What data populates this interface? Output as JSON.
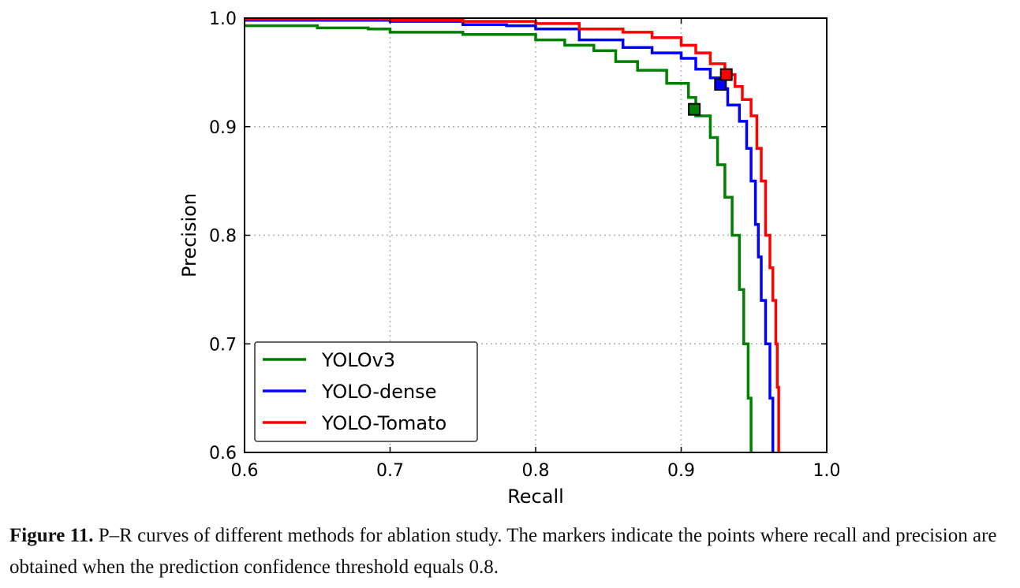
{
  "caption": {
    "label": "Figure 11.",
    "text": " P–R curves of different methods for ablation study. The markers indicate the points where recall and precision are obtained when the prediction confidence threshold equals 0.8."
  },
  "chart_data": {
    "type": "line",
    "title": "",
    "xlabel": "Recall",
    "ylabel": "Precision",
    "xlim": [
      0.6,
      1.0
    ],
    "ylim": [
      0.6,
      1.0
    ],
    "xticks": [
      "0.6",
      "0.7",
      "0.8",
      "0.9",
      "1.0"
    ],
    "yticks": [
      "0.6",
      "0.7",
      "0.8",
      "0.9",
      "1.0"
    ],
    "grid": true,
    "legend_position": "lower-left",
    "series": [
      {
        "name": "YOLOv3",
        "color": "#008000",
        "points": [
          [
            0.6,
            0.993
          ],
          [
            0.65,
            0.991
          ],
          [
            0.685,
            0.99
          ],
          [
            0.7,
            0.987
          ],
          [
            0.75,
            0.985
          ],
          [
            0.8,
            0.98
          ],
          [
            0.82,
            0.975
          ],
          [
            0.84,
            0.97
          ],
          [
            0.855,
            0.96
          ],
          [
            0.87,
            0.952
          ],
          [
            0.89,
            0.94
          ],
          [
            0.905,
            0.927
          ],
          [
            0.91,
            0.91
          ],
          [
            0.92,
            0.89
          ],
          [
            0.925,
            0.865
          ],
          [
            0.93,
            0.835
          ],
          [
            0.935,
            0.8
          ],
          [
            0.94,
            0.75
          ],
          [
            0.943,
            0.7
          ],
          [
            0.946,
            0.65
          ],
          [
            0.948,
            0.6
          ]
        ],
        "marker": [
          0.909,
          0.916
        ]
      },
      {
        "name": "YOLO-dense",
        "color": "#0000ff",
        "points": [
          [
            0.6,
            0.998
          ],
          [
            0.7,
            0.997
          ],
          [
            0.75,
            0.994
          ],
          [
            0.78,
            0.993
          ],
          [
            0.8,
            0.99
          ],
          [
            0.83,
            0.98
          ],
          [
            0.86,
            0.973
          ],
          [
            0.88,
            0.968
          ],
          [
            0.9,
            0.963
          ],
          [
            0.91,
            0.953
          ],
          [
            0.92,
            0.945
          ],
          [
            0.927,
            0.935
          ],
          [
            0.932,
            0.92
          ],
          [
            0.94,
            0.905
          ],
          [
            0.945,
            0.88
          ],
          [
            0.948,
            0.85
          ],
          [
            0.951,
            0.81
          ],
          [
            0.953,
            0.78
          ],
          [
            0.955,
            0.74
          ],
          [
            0.958,
            0.7
          ],
          [
            0.961,
            0.65
          ],
          [
            0.963,
            0.6
          ]
        ],
        "marker": [
          0.927,
          0.939
        ]
      },
      {
        "name": "YOLO-Tomato",
        "color": "#ff0000",
        "points": [
          [
            0.6,
            0.999
          ],
          [
            0.7,
            0.998
          ],
          [
            0.75,
            0.997
          ],
          [
            0.8,
            0.995
          ],
          [
            0.83,
            0.99
          ],
          [
            0.86,
            0.987
          ],
          [
            0.88,
            0.982
          ],
          [
            0.9,
            0.975
          ],
          [
            0.91,
            0.968
          ],
          [
            0.92,
            0.958
          ],
          [
            0.93,
            0.948
          ],
          [
            0.937,
            0.937
          ],
          [
            0.942,
            0.925
          ],
          [
            0.948,
            0.91
          ],
          [
            0.952,
            0.88
          ],
          [
            0.955,
            0.85
          ],
          [
            0.958,
            0.8
          ],
          [
            0.961,
            0.77
          ],
          [
            0.963,
            0.74
          ],
          [
            0.965,
            0.7
          ],
          [
            0.966,
            0.66
          ],
          [
            0.967,
            0.6
          ]
        ],
        "marker": [
          0.931,
          0.948
        ]
      }
    ]
  }
}
